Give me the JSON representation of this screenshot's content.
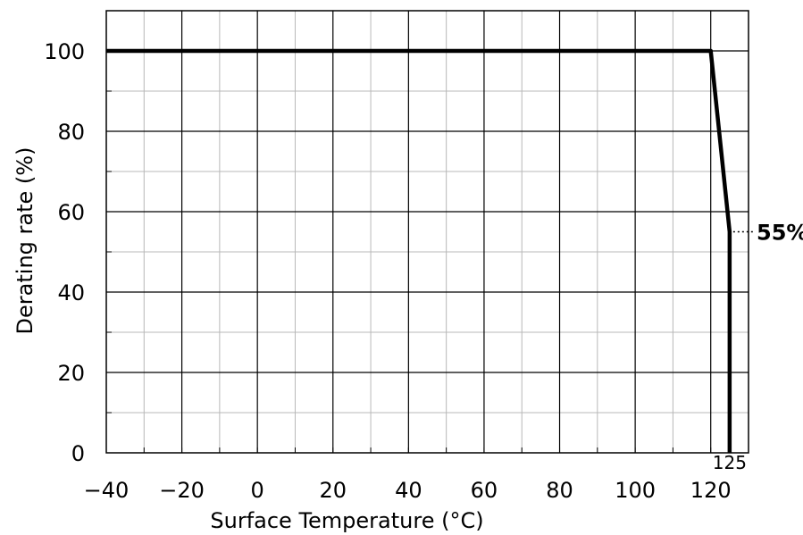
{
  "chart_data": {
    "type": "line",
    "title": "",
    "xlabel": "Surface Temperature (°C)",
    "ylabel": "Derating rate (%)",
    "xlim": [
      -40,
      130
    ],
    "ylim": [
      0,
      110
    ],
    "x_ticks": [
      -40,
      -20,
      0,
      20,
      40,
      60,
      80,
      100,
      120
    ],
    "x_tick_labels": [
      "−40",
      "−20",
      "0",
      "20",
      "40",
      "60",
      "80",
      "100",
      "120"
    ],
    "y_ticks": [
      0,
      20,
      40,
      60,
      80,
      100
    ],
    "y_tick_labels": [
      "0",
      "20",
      "40",
      "60",
      "80",
      "100"
    ],
    "grid": true,
    "legend": "none",
    "series": [
      {
        "x": [
          -40,
          120,
          125,
          125
        ],
        "y": [
          100,
          100,
          55,
          0
        ],
        "color": "#000000"
      }
    ],
    "annotations": [
      {
        "text": "55%",
        "x": 125,
        "y": 55,
        "style": "bold",
        "dotted_leader": true
      },
      {
        "text": "125",
        "x": 125,
        "y": 0,
        "style": "small"
      }
    ]
  }
}
